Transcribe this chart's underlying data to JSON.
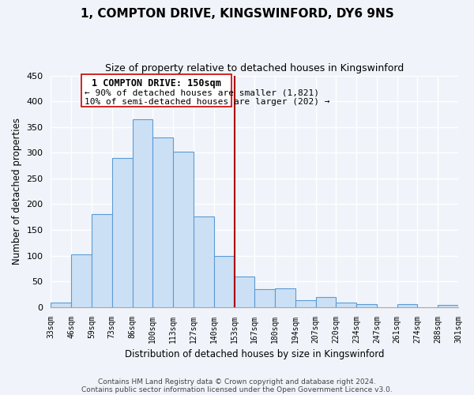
{
  "title": "1, COMPTON DRIVE, KINGSWINFORD, DY6 9NS",
  "subtitle": "Size of property relative to detached houses in Kingswinford",
  "xlabel": "Distribution of detached houses by size in Kingswinford",
  "ylabel": "Number of detached properties",
  "bar_labels": [
    "33sqm",
    "46sqm",
    "59sqm",
    "73sqm",
    "86sqm",
    "100sqm",
    "113sqm",
    "127sqm",
    "140sqm",
    "153sqm",
    "167sqm",
    "180sqm",
    "194sqm",
    "207sqm",
    "220sqm",
    "234sqm",
    "247sqm",
    "261sqm",
    "274sqm",
    "288sqm",
    "301sqm"
  ],
  "bar_values": [
    8,
    103,
    181,
    289,
    365,
    330,
    302,
    176,
    100,
    59,
    35,
    37,
    14,
    19,
    8,
    5,
    0,
    5,
    0,
    4
  ],
  "bar_color": "#cce0f5",
  "bar_edge_color": "#5b9bd5",
  "annotation_line_color": "#aa0000",
  "annotation_box_title": "1 COMPTON DRIVE: 150sqm",
  "annotation_line1": "← 90% of detached houses are smaller (1,821)",
  "annotation_line2": "10% of semi-detached houses are larger (202) →",
  "annotation_box_facecolor": "white",
  "annotation_box_edgecolor": "#cc0000",
  "ylim": [
    0,
    450
  ],
  "yticks": [
    0,
    50,
    100,
    150,
    200,
    250,
    300,
    350,
    400,
    450
  ],
  "footer1": "Contains HM Land Registry data © Crown copyright and database right 2024.",
  "footer2": "Contains public sector information licensed under the Open Government Licence v3.0.",
  "background_color": "#f0f4fa",
  "grid_color": "#ffffff"
}
